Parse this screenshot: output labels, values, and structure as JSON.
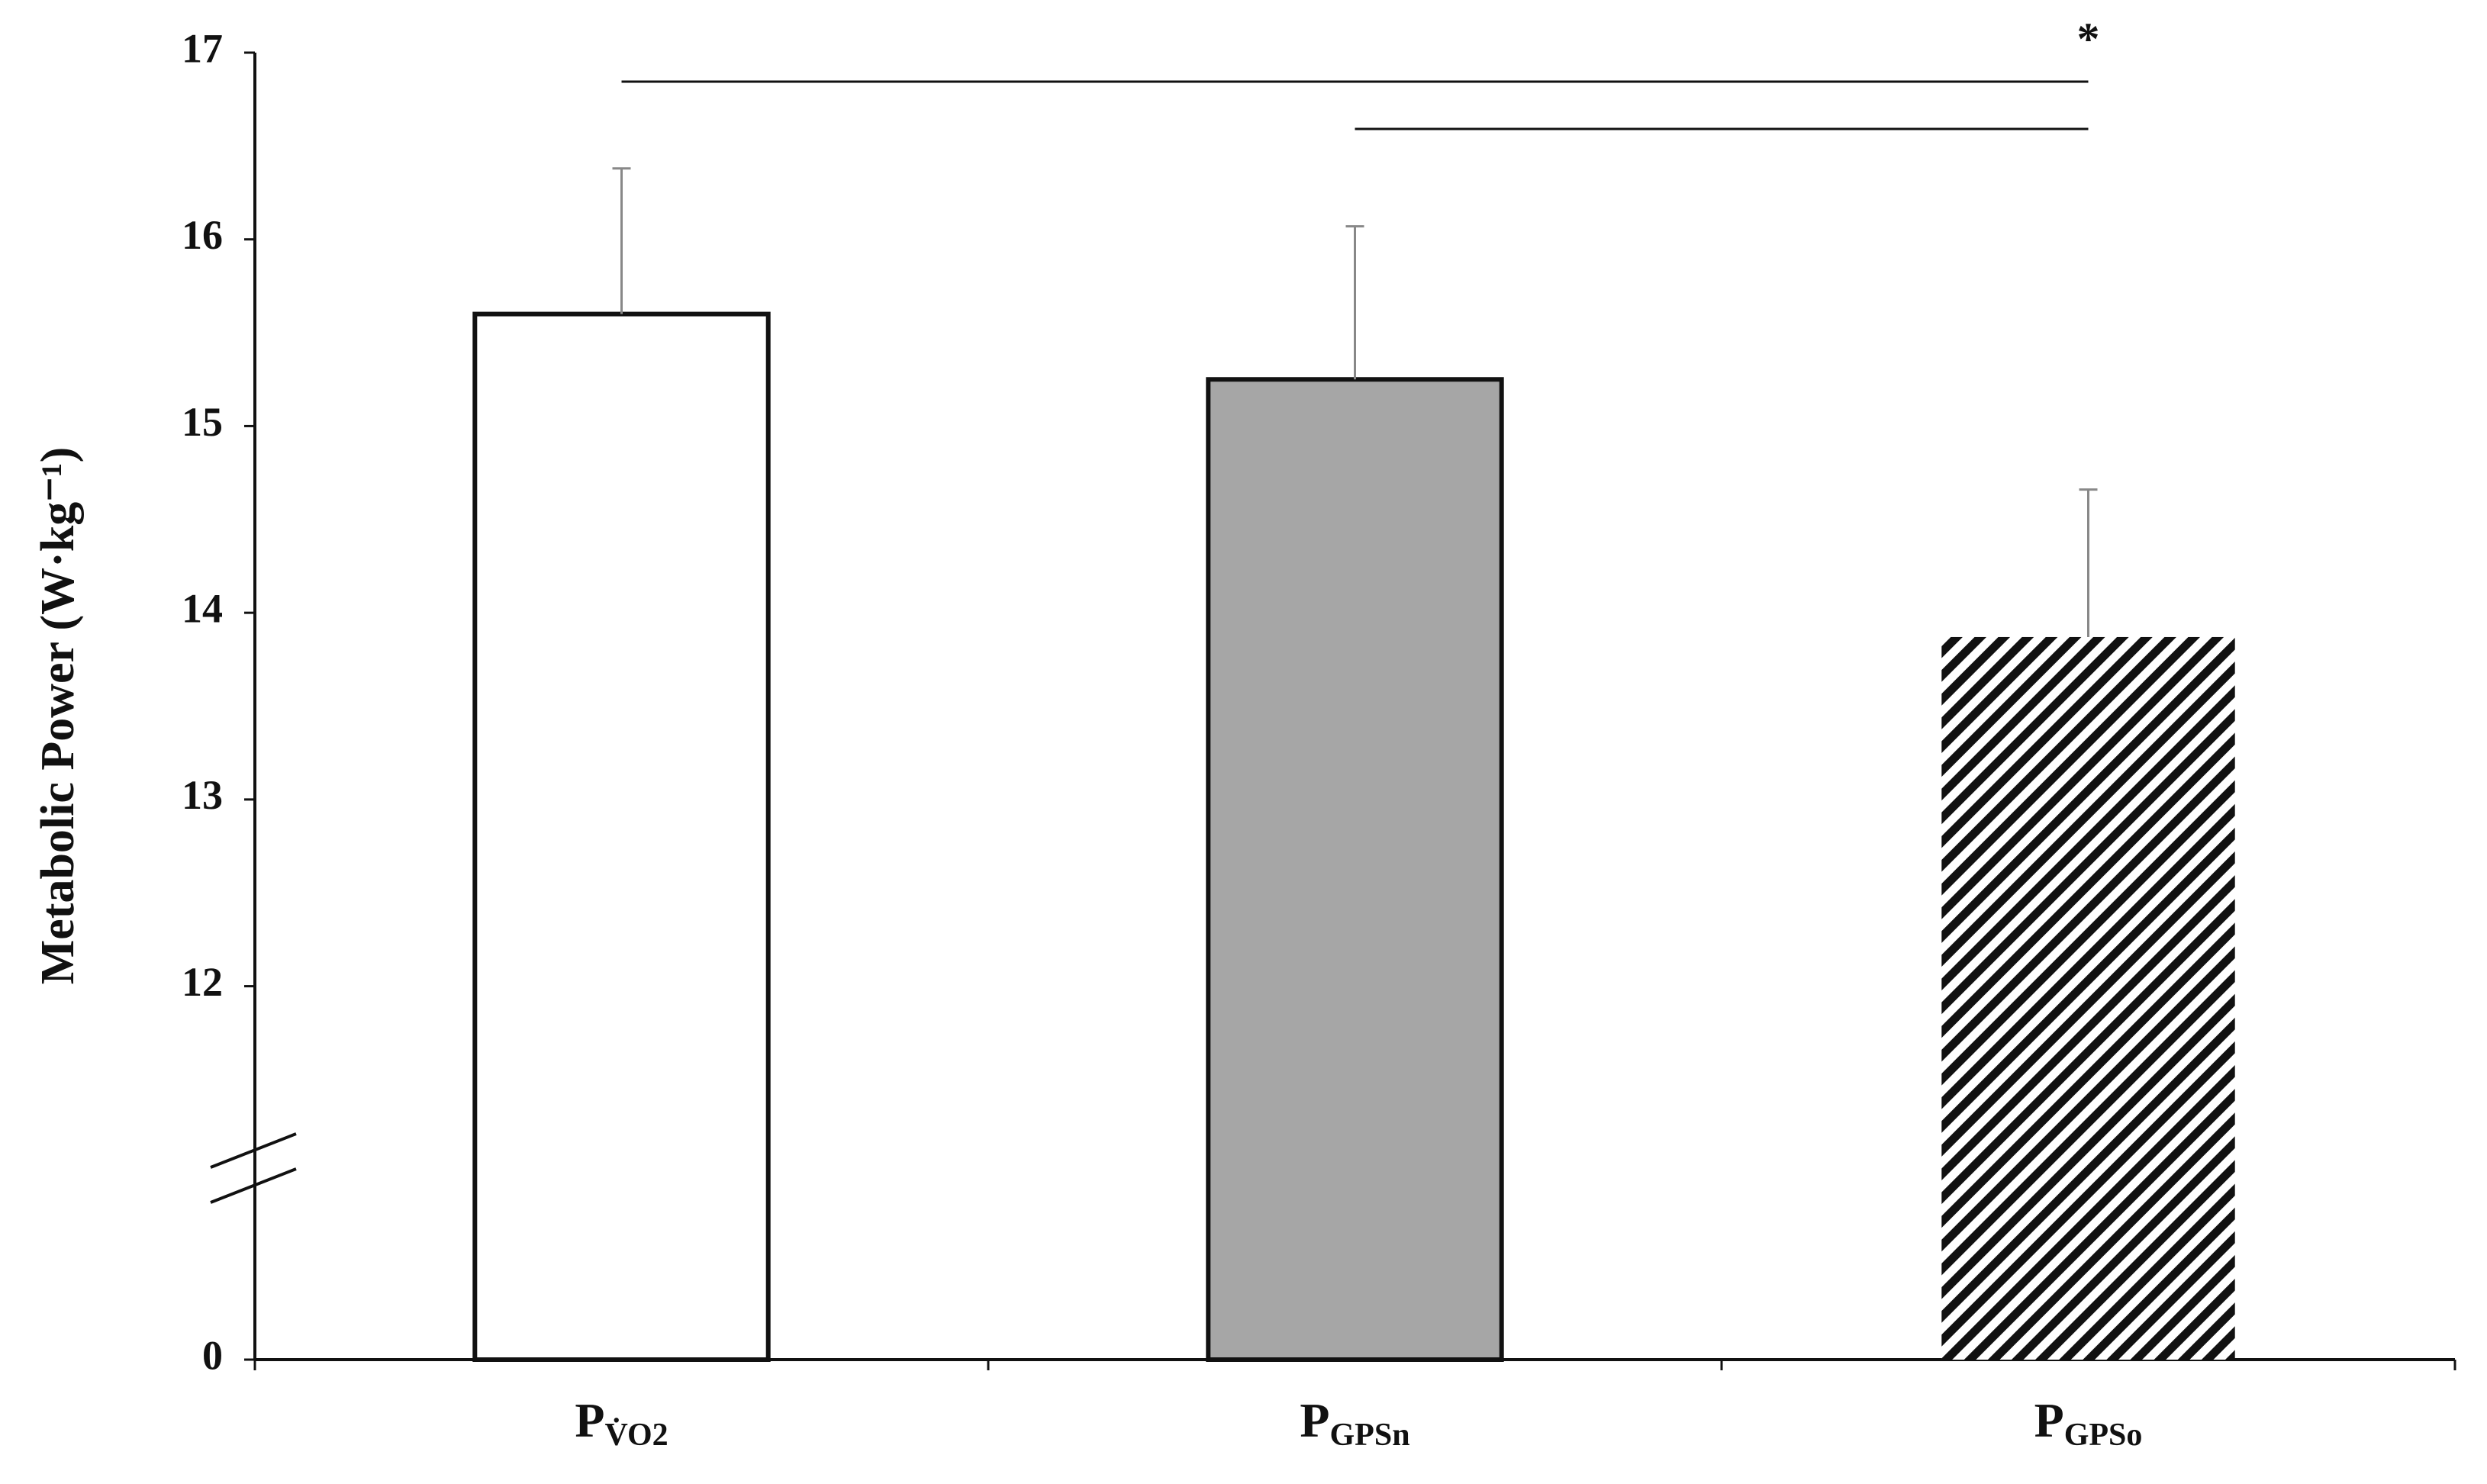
{
  "chart_data": {
    "type": "bar",
    "y_label": "Metabolic Power (W·kg⁻¹)",
    "categories": [
      {
        "text": "P",
        "subscript": "V̇O2"
      },
      {
        "text": "P",
        "subscript": "GPSn"
      },
      {
        "text": "P",
        "subscript": "GPSo"
      }
    ],
    "values": [
      15.6,
      15.25,
      13.87
    ],
    "errors": [
      0.78,
      0.82,
      0.79
    ],
    "fills": [
      "#ffffff",
      "#a6a6a6",
      "hatch"
    ],
    "ylim": [
      0,
      17
    ],
    "yticks": [
      0,
      12,
      13,
      14,
      15,
      16,
      17
    ],
    "axis_break": true,
    "significance": [
      {
        "from": 0,
        "to": 2,
        "label": "*"
      },
      {
        "from": 1,
        "to": 2
      }
    ]
  }
}
